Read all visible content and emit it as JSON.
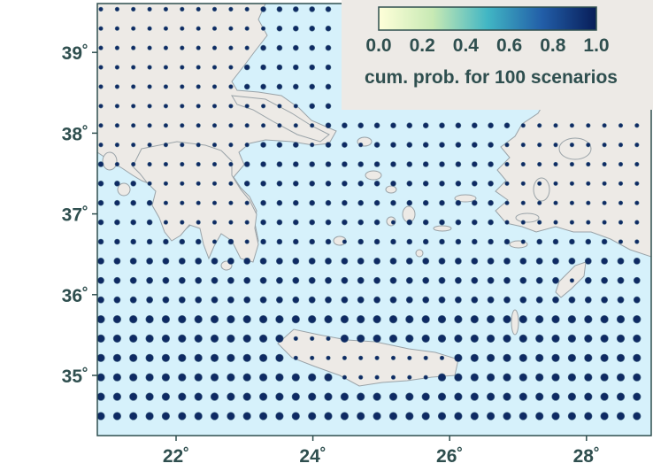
{
  "map": {
    "lon_range": [
      20.85,
      29.1
    ],
    "lat_range": [
      34.35,
      39.6
    ],
    "x_ticks": [
      {
        "lon": 22,
        "label": "22˚"
      },
      {
        "lon": 24,
        "label": "24˚"
      },
      {
        "lon": 26,
        "label": "26˚"
      },
      {
        "lon": 28,
        "label": "28˚"
      }
    ],
    "y_ticks": [
      {
        "lat": 35,
        "label": "35˚"
      },
      {
        "lat": 36,
        "label": "36˚"
      },
      {
        "lat": 37,
        "label": "37˚"
      },
      {
        "lat": 38,
        "label": "38˚"
      },
      {
        "lat": 39,
        "label": "39˚"
      }
    ],
    "colors": {
      "sea": "#d6f1fb",
      "land": "#edeae6",
      "coast": "#9aa3a8",
      "dot": "#0e2a63",
      "axis": "#2f4f4f"
    },
    "grid_step_deg": 0.25
  },
  "colorbar": {
    "tick_labels": [
      "0.0",
      "0.2",
      "0.4",
      "0.6",
      "0.8",
      "1.0"
    ],
    "label": "cum. prob. for 100 scenarios",
    "colormap": [
      "#ffffd9",
      "#c7e9b4",
      "#41b6c4",
      "#225ea8",
      "#081d58"
    ]
  }
}
